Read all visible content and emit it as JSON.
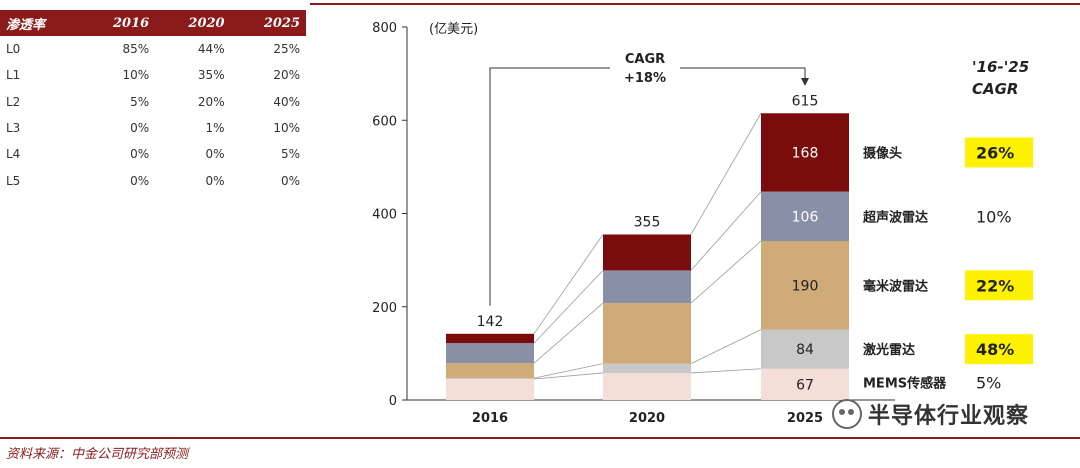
{
  "penetration_table": {
    "headers": [
      "渗透率",
      "2016",
      "2020",
      "2025"
    ],
    "rows": [
      [
        "L0",
        "85%",
        "44%",
        "25%"
      ],
      [
        "L1",
        "10%",
        "35%",
        "20%"
      ],
      [
        "L2",
        "5%",
        "20%",
        "40%"
      ],
      [
        "L3",
        "0%",
        "1%",
        "10%"
      ],
      [
        "L4",
        "0%",
        "0%",
        "5%"
      ],
      [
        "L5",
        "0%",
        "0%",
        "0%"
      ]
    ]
  },
  "chart_data": {
    "type": "bar",
    "stacked": true,
    "ylabel": "(亿美元)",
    "ylim": [
      0,
      800
    ],
    "yticks": [
      0,
      200,
      400,
      600,
      800
    ],
    "categories": [
      "2016",
      "2020",
      "2025"
    ],
    "series": [
      {
        "name": "MEMS传感器",
        "values": [
          45,
          58,
          67
        ],
        "color": "#f3ded8",
        "cagr": "5%",
        "cagr_highlight": false
      },
      {
        "name": "激光雷达",
        "values": [
          2,
          20,
          84
        ],
        "color": "#c8c8c8",
        "cagr": "48%",
        "cagr_highlight": true
      },
      {
        "name": "毫米波雷达",
        "values": [
          32,
          130,
          190
        ],
        "color": "#cfab78",
        "cagr": "22%",
        "cagr_highlight": true
      },
      {
        "name": "超声波雷达",
        "values": [
          43,
          70,
          106
        ],
        "color": "#8a8fa8",
        "cagr": "10%",
        "cagr_highlight": false
      },
      {
        "name": "摄像头",
        "values": [
          20,
          77,
          168
        ],
        "color": "#7a0c0c",
        "cagr": "26%",
        "cagr_highlight": true
      }
    ],
    "totals": [
      142,
      355,
      615
    ],
    "segment_labels_2025": [
      "67",
      "84",
      "190",
      "106",
      "168"
    ],
    "cagr_annotation": [
      "CAGR",
      "+18%"
    ],
    "cagr_title": [
      "'16-'25",
      "CAGR"
    ],
    "highlight_color": "#fff200"
  },
  "source": "资料来源：中金公司研究部预测",
  "watermark": "半导体行业观察"
}
